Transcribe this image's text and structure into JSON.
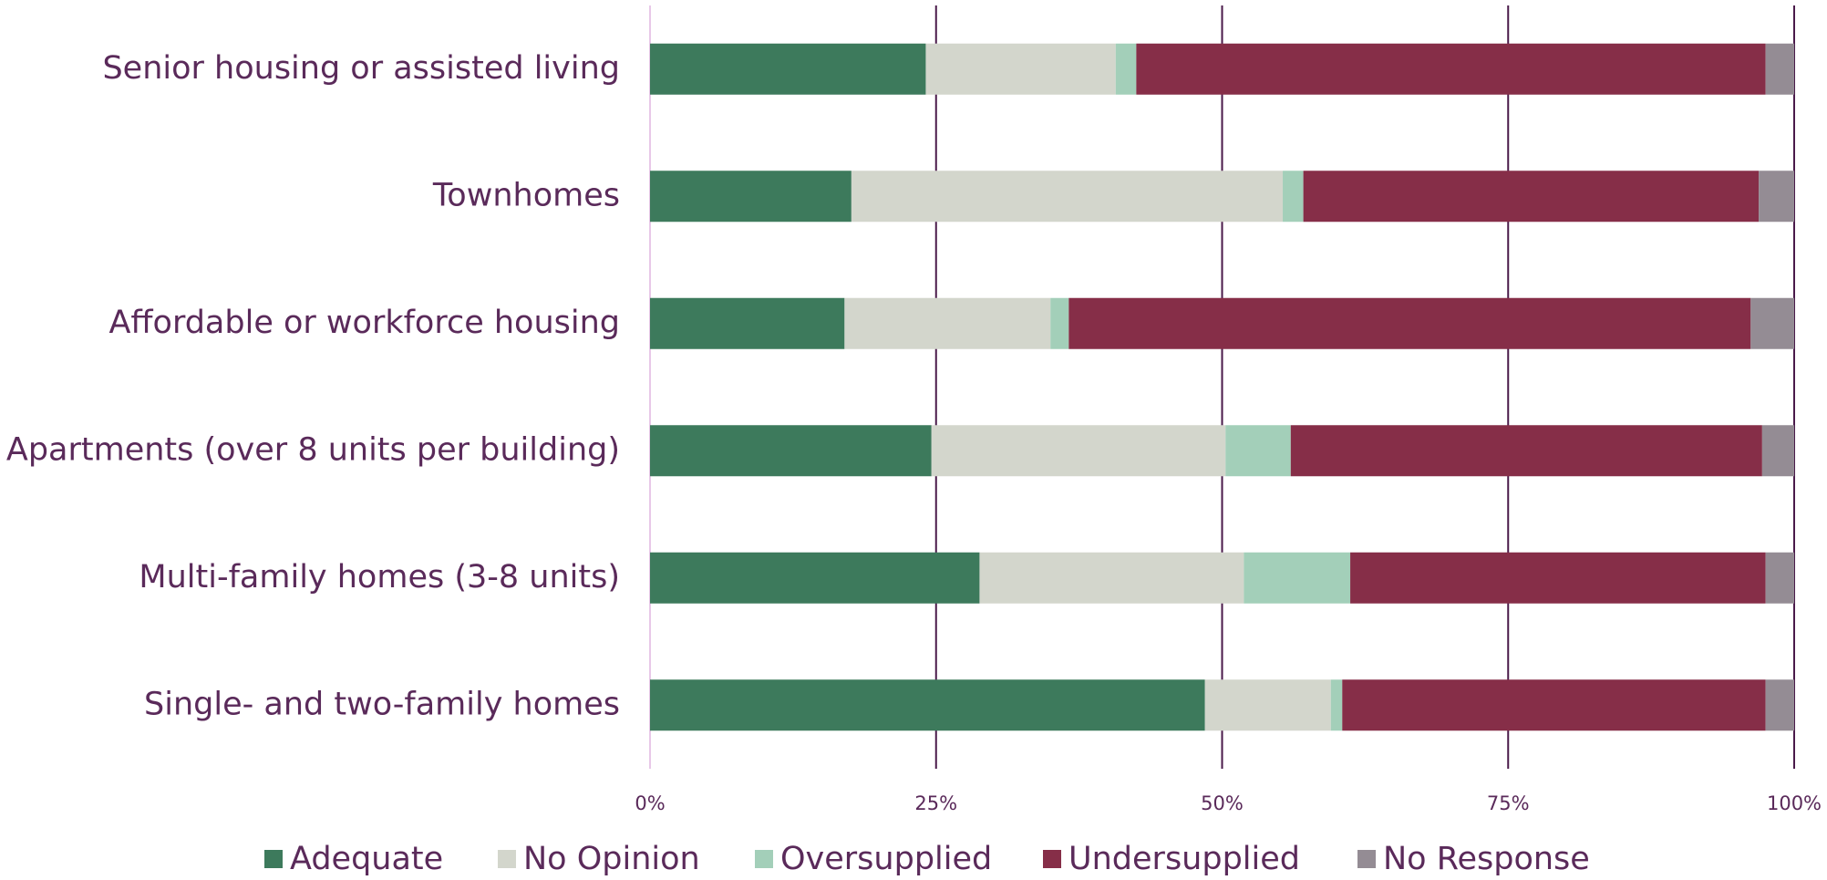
{
  "chart_data": {
    "type": "stacked-bar-horizontal",
    "categories": [
      "Senior housing or assisted living",
      "Townhomes",
      "Affordable or workforce housing",
      "Apartments (over 8 units per building)",
      "Multi-family homes (3-8 units)",
      "Single- and two-family homes"
    ],
    "series": [
      {
        "name": "Adequate",
        "color": "#3d7a5c",
        "values": [
          24.1,
          17.6,
          17.0,
          24.6,
          28.8,
          48.5
        ]
      },
      {
        "name": "No Opinion",
        "color": "#d3d6cc",
        "values": [
          16.6,
          37.7,
          18.0,
          25.7,
          23.1,
          11.0
        ]
      },
      {
        "name": "Oversupplied",
        "color": "#a3cfb9",
        "values": [
          1.8,
          1.8,
          1.6,
          5.7,
          9.3,
          1.0
        ]
      },
      {
        "name": "Undersupplied",
        "color": "#862e48",
        "values": [
          55.0,
          39.8,
          59.6,
          41.2,
          36.3,
          37.0
        ]
      },
      {
        "name": "No Response",
        "color": "#948c94",
        "values": [
          2.5,
          3.1,
          3.8,
          2.8,
          2.5,
          2.5
        ]
      }
    ],
    "xlim": [
      0,
      100
    ],
    "xticks": [
      {
        "value": 0,
        "label": "0%"
      },
      {
        "value": 25,
        "label": "25%"
      },
      {
        "value": 50,
        "label": "50%"
      },
      {
        "value": 75,
        "label": "75%"
      },
      {
        "value": 100,
        "label": "100%"
      }
    ],
    "grid": true,
    "legend": "bottom"
  }
}
